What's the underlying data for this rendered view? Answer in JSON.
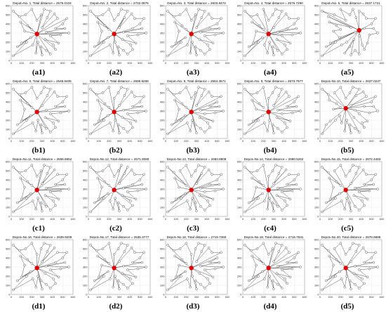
{
  "chart_data": [
    {
      "type": "line",
      "title": "Depot=No. 1, Total distance = 2575.0104",
      "caption": "(a1)",
      "depot": [
        250,
        290
      ],
      "xlim": [
        0,
        600
      ],
      "ylim": [
        0,
        600
      ],
      "xticks": [
        "0",
        "100",
        "200",
        "300",
        "400",
        "500",
        "600"
      ],
      "yticks": [
        "0",
        "100",
        "200",
        "300",
        "400",
        "500",
        "600"
      ]
    },
    {
      "type": "line",
      "title": "Depot=No. 2, Total distance = 2702.0876",
      "caption": "(a2)",
      "depot": [
        250,
        290
      ],
      "xlim": [
        0,
        600
      ],
      "ylim": [
        0,
        600
      ],
      "xticks": [
        "0",
        "100",
        "200",
        "300",
        "400",
        "500",
        "600"
      ],
      "yticks": [
        "0",
        "100",
        "200",
        "300",
        "400",
        "500",
        "600"
      ]
    },
    {
      "type": "line",
      "title": "Depot=No. 3, Total distance = 2603.8473",
      "caption": "(a3)",
      "depot": [
        250,
        290
      ],
      "xlim": [
        0,
        600
      ],
      "ylim": [
        0,
        600
      ],
      "xticks": [
        "0",
        "100",
        "200",
        "300",
        "400",
        "500",
        "600"
      ],
      "yticks": [
        "0",
        "100",
        "200",
        "300",
        "400",
        "500",
        "600"
      ]
    },
    {
      "type": "line",
      "title": "Depot=No. 4, Total distance = 2576.7290",
      "caption": "(a4)",
      "depot": [
        250,
        290
      ],
      "xlim": [
        0,
        600
      ],
      "ylim": [
        0,
        600
      ],
      "xticks": [
        "0",
        "100",
        "200",
        "300",
        "400",
        "500",
        "600"
      ],
      "yticks": [
        "0",
        "100",
        "200",
        "300",
        "400",
        "500",
        "600"
      ]
    },
    {
      "type": "line",
      "title": "Depot=No. 5, Total distance = 2637.1721",
      "caption": "(a5)",
      "depot": [
        380,
        330
      ],
      "xlim": [
        0,
        600
      ],
      "ylim": [
        0,
        600
      ],
      "xticks": [
        "0",
        "100",
        "200",
        "300",
        "400",
        "500",
        "600"
      ],
      "yticks": [
        "0",
        "100",
        "200",
        "300",
        "400",
        "500",
        "600"
      ]
    },
    {
      "type": "line",
      "title": "Depot=No. 6, Total distance = 2648.6405",
      "caption": "(b1)",
      "depot": [
        250,
        290
      ],
      "xlim": [
        0,
        600
      ],
      "ylim": [
        0,
        600
      ],
      "xticks": [
        "0",
        "100",
        "200",
        "300",
        "400",
        "500",
        "600"
      ],
      "yticks": [
        "0",
        "100",
        "200",
        "300",
        "400",
        "500",
        "600"
      ]
    },
    {
      "type": "line",
      "title": "Depot=No. 7, Total distance = 2685.8268",
      "caption": "(b2)",
      "depot": [
        250,
        290
      ],
      "xlim": [
        0,
        600
      ],
      "ylim": [
        0,
        600
      ],
      "xticks": [
        "0",
        "100",
        "200",
        "300",
        "400",
        "500",
        "600"
      ],
      "yticks": [
        "0",
        "100",
        "200",
        "300",
        "400",
        "500",
        "600"
      ]
    },
    {
      "type": "line",
      "title": "Depot=No. 8, Total distance = 2664.3571",
      "caption": "(b3)",
      "depot": [
        250,
        290
      ],
      "xlim": [
        0,
        600
      ],
      "ylim": [
        0,
        600
      ],
      "xticks": [
        "0",
        "100",
        "200",
        "300",
        "400",
        "500",
        "600"
      ],
      "yticks": [
        "0",
        "100",
        "200",
        "300",
        "400",
        "500",
        "600"
      ]
    },
    {
      "type": "line",
      "title": "Depot=No. 9, Total distance = 2673.7977",
      "caption": "(b4)",
      "depot": [
        250,
        290
      ],
      "xlim": [
        0,
        600
      ],
      "ylim": [
        0,
        600
      ],
      "xticks": [
        "0",
        "100",
        "200",
        "300",
        "400",
        "500",
        "600"
      ],
      "yticks": [
        "0",
        "100",
        "200",
        "300",
        "400",
        "500",
        "600"
      ]
    },
    {
      "type": "line",
      "title": "Depot=No.10, Total distance = 2637.0237",
      "caption": "(b5)",
      "depot": [
        250,
        330
      ],
      "xlim": [
        0,
        600
      ],
      "ylim": [
        0,
        600
      ],
      "xticks": [
        "0",
        "100",
        "200",
        "300",
        "400",
        "500",
        "600"
      ],
      "yticks": [
        "0",
        "100",
        "200",
        "300",
        "400",
        "500",
        "600"
      ]
    },
    {
      "type": "line",
      "title": "Depot=No.11, Total distance = 2658.6952",
      "caption": "(c1)",
      "depot": [
        250,
        290
      ],
      "xlim": [
        0,
        600
      ],
      "ylim": [
        0,
        600
      ],
      "xticks": [
        "0",
        "100",
        "200",
        "300",
        "400",
        "500",
        "600"
      ],
      "yticks": [
        "0",
        "100",
        "200",
        "300",
        "400",
        "500",
        "600"
      ]
    },
    {
      "type": "line",
      "title": "Depot=No.12, Total distance = 2671.8080",
      "caption": "(c2)",
      "depot": [
        250,
        290
      ],
      "xlim": [
        0,
        600
      ],
      "ylim": [
        0,
        600
      ],
      "xticks": [
        "0",
        "100",
        "200",
        "300",
        "400",
        "500",
        "600"
      ],
      "yticks": [
        "0",
        "100",
        "200",
        "300",
        "400",
        "500",
        "600"
      ]
    },
    {
      "type": "line",
      "title": "Depot=No.13, Total distance = 2683.8908",
      "caption": "(c3)",
      "depot": [
        250,
        290
      ],
      "xlim": [
        0,
        600
      ],
      "ylim": [
        0,
        600
      ],
      "xticks": [
        "0",
        "100",
        "200",
        "300",
        "400",
        "500",
        "600"
      ],
      "yticks": [
        "0",
        "100",
        "200",
        "300",
        "400",
        "500",
        "600"
      ]
    },
    {
      "type": "line",
      "title": "Depot=No.14, Total distance = 2680.5262",
      "caption": "(c4)",
      "depot": [
        250,
        290
      ],
      "xlim": [
        0,
        600
      ],
      "ylim": [
        0,
        600
      ],
      "xticks": [
        "0",
        "100",
        "200",
        "300",
        "400",
        "500",
        "600"
      ],
      "yticks": [
        "0",
        "100",
        "200",
        "300",
        "400",
        "500",
        "600"
      ]
    },
    {
      "type": "line",
      "title": "Depot=No.15, Total distance = 2672.4483",
      "caption": "(c5)",
      "depot": [
        250,
        290
      ],
      "xlim": [
        0,
        600
      ],
      "ylim": [
        0,
        600
      ],
      "xticks": [
        "0",
        "100",
        "200",
        "300",
        "400",
        "500",
        "600"
      ],
      "yticks": [
        "0",
        "100",
        "200",
        "300",
        "400",
        "500",
        "600"
      ]
    },
    {
      "type": "line",
      "title": "Depot=No.16, Total distance = 2639.9209",
      "caption": "(d1)",
      "depot": [
        250,
        290
      ],
      "xlim": [
        0,
        600
      ],
      "ylim": [
        0,
        600
      ],
      "xticks": [
        "0",
        "100",
        "200",
        "300",
        "400",
        "500",
        "600"
      ],
      "yticks": [
        "0",
        "100",
        "200",
        "300",
        "400",
        "500",
        "600"
      ]
    },
    {
      "type": "line",
      "title": "Depot=No.17, Total distance = 2635.3777",
      "caption": "(d2)",
      "depot": [
        250,
        290
      ],
      "xlim": [
        0,
        600
      ],
      "ylim": [
        0,
        600
      ],
      "xticks": [
        "0",
        "100",
        "200",
        "300",
        "400",
        "500",
        "600"
      ],
      "yticks": [
        "0",
        "100",
        "200",
        "300",
        "400",
        "500",
        "600"
      ]
    },
    {
      "type": "line",
      "title": "Depot=No.18, Total distance = 2719.7360",
      "caption": "(d3)",
      "depot": [
        250,
        290
      ],
      "xlim": [
        0,
        600
      ],
      "ylim": [
        0,
        600
      ],
      "xticks": [
        "0",
        "100",
        "200",
        "300",
        "400",
        "500",
        "600"
      ],
      "yticks": [
        "0",
        "100",
        "200",
        "300",
        "400",
        "500",
        "600"
      ]
    },
    {
      "type": "line",
      "title": "Depot=No.19, Total distance = 2716.7531",
      "caption": "(d4)",
      "depot": [
        250,
        290
      ],
      "xlim": [
        0,
        600
      ],
      "ylim": [
        0,
        600
      ],
      "xticks": [
        "0",
        "100",
        "200",
        "300",
        "400",
        "500",
        "600"
      ],
      "yticks": [
        "0",
        "100",
        "200",
        "300",
        "400",
        "500",
        "600"
      ]
    },
    {
      "type": "line",
      "title": "Depot=No.20, Total distance = 2678.6886",
      "caption": "(d5)",
      "depot": [
        250,
        290
      ],
      "xlim": [
        0,
        600
      ],
      "ylim": [
        0,
        600
      ],
      "xticks": [
        "0",
        "100",
        "200",
        "300",
        "400",
        "500",
        "600"
      ],
      "yticks": [
        "0",
        "100",
        "200",
        "300",
        "400",
        "500",
        "600"
      ]
    }
  ],
  "customers": [
    [
      20,
      50
    ],
    [
      60,
      150
    ],
    [
      100,
      190
    ],
    [
      90,
      420
    ],
    [
      20,
      540
    ],
    [
      80,
      480
    ],
    [
      140,
      500
    ],
    [
      160,
      380
    ],
    [
      200,
      340
    ],
    [
      130,
      320
    ],
    [
      190,
      250
    ],
    [
      150,
      200
    ],
    [
      210,
      170
    ],
    [
      260,
      200
    ],
    [
      290,
      150
    ],
    [
      240,
      80
    ],
    [
      340,
      110
    ],
    [
      300,
      60
    ],
    [
      380,
      70
    ],
    [
      430,
      120
    ],
    [
      460,
      190
    ],
    [
      410,
      170
    ],
    [
      330,
      230
    ],
    [
      340,
      310
    ],
    [
      380,
      270
    ],
    [
      300,
      360
    ],
    [
      250,
      440
    ],
    [
      290,
      500
    ],
    [
      350,
      470
    ],
    [
      380,
      540
    ],
    [
      420,
      510
    ],
    [
      450,
      460
    ],
    [
      500,
      400
    ],
    [
      520,
      350
    ],
    [
      560,
      300
    ],
    [
      480,
      280
    ],
    [
      430,
      350
    ],
    [
      200,
      560
    ],
    [
      320,
      560
    ],
    [
      540,
      460
    ]
  ],
  "route_colors": {
    "node_fill": "#ffffff",
    "node_stroke": "#333333",
    "edge": "#444444",
    "depot": "#e00000"
  }
}
